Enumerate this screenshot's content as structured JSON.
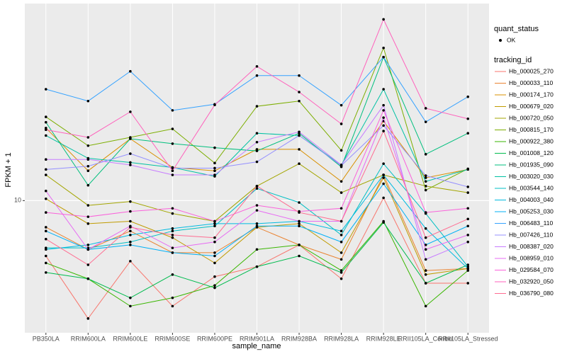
{
  "chart_data": {
    "type": "line",
    "x_label": "sample_name",
    "y_label": "FPKM + 1",
    "log_y": true,
    "grid": true,
    "legend_position": "right",
    "ylim": [
      2.4,
      84
    ],
    "yticks": [
      10
    ],
    "shape_legend": {
      "title": "quant_status",
      "labels": [
        "OK"
      ]
    },
    "color_legend_title": "tracking_id",
    "categories": [
      "PB350LA",
      "RRIM600LA",
      "RRIM600LE",
      "RRIM600SE",
      "RRIM600PE",
      "RRIM901LA",
      "RRIM928BA",
      "RRIM928LA",
      "RRIM928LE",
      "RRII105LA_Control",
      "RRII105LA_Stressed"
    ],
    "series": [
      {
        "name": "Hb_000025_270",
        "color": "#F8766D",
        "values": [
          5.5,
          2.8,
          5.2,
          3.2,
          4.4,
          4.9,
          6.2,
          4.3,
          10.3,
          4.1,
          4.1
        ]
      },
      {
        "name": "Hb_000033_110",
        "color": "#EA8331",
        "values": [
          7.5,
          5.9,
          7.2,
          5.7,
          5.7,
          7.5,
          6.2,
          5.3,
          13.2,
          4.7,
          4.8
        ]
      },
      {
        "name": "Hb_000174_170",
        "color": "#D89000",
        "values": [
          21.9,
          13.8,
          19.5,
          14.3,
          13.8,
          17.4,
          17.4,
          12.3,
          23.6,
          12.8,
          14.0
        ]
      },
      {
        "name": "Hb_000679_020",
        "color": "#C09B00",
        "values": [
          10.2,
          7.8,
          8.0,
          6.7,
          5.1,
          7.5,
          7.8,
          5.7,
          12.8,
          4.5,
          4.8
        ]
      },
      {
        "name": "Hb_000720_050",
        "color": "#A3A500",
        "values": [
          13.2,
          9.5,
          9.9,
          8.7,
          8.0,
          11.7,
          14.9,
          10.9,
          13.2,
          11.7,
          10.9
        ]
      },
      {
        "name": "Hb_000815_170",
        "color": "#7CAE00",
        "values": [
          24.7,
          18.1,
          19.8,
          21.7,
          15.0,
          27.7,
          29.3,
          17.2,
          52.0,
          11.2,
          14.1
        ]
      },
      {
        "name": "Hb_000922_380",
        "color": "#39B600",
        "values": [
          5.1,
          4.3,
          3.2,
          3.5,
          4.0,
          5.9,
          6.2,
          4.7,
          8.0,
          3.2,
          4.7
        ]
      },
      {
        "name": "Hb_001008_120",
        "color": "#00BB4E",
        "values": [
          4.6,
          4.3,
          3.5,
          4.5,
          3.9,
          4.9,
          5.5,
          4.6,
          7.9,
          4.1,
          5.0
        ]
      },
      {
        "name": "Hb_001935_090",
        "color": "#00BF7D",
        "values": [
          23.3,
          11.8,
          19.5,
          18.5,
          17.7,
          17.1,
          20.7,
          14.4,
          47.1,
          16.5,
          20.7
        ]
      },
      {
        "name": "Hb_003020_030",
        "color": "#00C1A3",
        "values": [
          20.2,
          15.8,
          15.1,
          14.3,
          13.0,
          20.7,
          20.2,
          14.7,
          33.3,
          12.3,
          14.0
        ]
      },
      {
        "name": "Hb_003544_140",
        "color": "#00BFC4",
        "values": [
          6.0,
          6.0,
          6.4,
          7.2,
          7.6,
          11.4,
          9.8,
          6.9,
          14.9,
          8.7,
          4.9
        ]
      },
      {
        "name": "Hb_004003_040",
        "color": "#00BAE0",
        "values": [
          5.9,
          6.2,
          6.9,
          7.4,
          7.8,
          7.8,
          8.0,
          7.2,
          13.2,
          7.4,
          4.8
        ]
      },
      {
        "name": "Hb_005253_030",
        "color": "#00B0F6",
        "values": [
          7.2,
          5.9,
          6.2,
          5.7,
          5.5,
          7.6,
          7.6,
          6.4,
          12.0,
          6.2,
          7.6
        ]
      },
      {
        "name": "Hb_006483_110",
        "color": "#35A2FF",
        "values": [
          33.3,
          29.3,
          40.4,
          26.5,
          28.3,
          38.6,
          38.6,
          28.0,
          47.1,
          23.4,
          30.7
        ]
      },
      {
        "name": "Hb_007426_110",
        "color": "#9590FF",
        "values": [
          14.0,
          14.5,
          16.6,
          14.2,
          14.2,
          15.2,
          20.2,
          14.6,
          22.5,
          13.1,
          11.6
        ]
      },
      {
        "name": "Hb_008387_020",
        "color": "#C77CFF",
        "values": [
          15.6,
          15.6,
          14.7,
          13.2,
          13.2,
          18.8,
          21.0,
          14.7,
          28.0,
          5.3,
          6.4
        ]
      },
      {
        "name": "Hb_008959_010",
        "color": "#E76BF3",
        "values": [
          11.1,
          5.9,
          7.6,
          6.0,
          6.4,
          9.0,
          8.0,
          8.0,
          24.5,
          5.9,
          6.9
        ]
      },
      {
        "name": "Hb_029584_070",
        "color": "#FA62DB",
        "values": [
          8.8,
          8.4,
          8.9,
          9.2,
          8.0,
          9.5,
          8.9,
          9.2,
          26.5,
          8.8,
          9.2
        ]
      },
      {
        "name": "Hb_032920_050",
        "color": "#FF62BC",
        "values": [
          21.5,
          19.8,
          26.1,
          13.8,
          28.1,
          42.6,
          32.3,
          22.9,
          70.8,
          27.1,
          24.2
        ]
      },
      {
        "name": "Hb_036790_080",
        "color": "#FF6C91",
        "values": [
          6.6,
          5.0,
          7.5,
          6.9,
          6.7,
          11.7,
          8.8,
          8.0,
          21.2,
          6.7,
          8.2
        ]
      }
    ]
  }
}
